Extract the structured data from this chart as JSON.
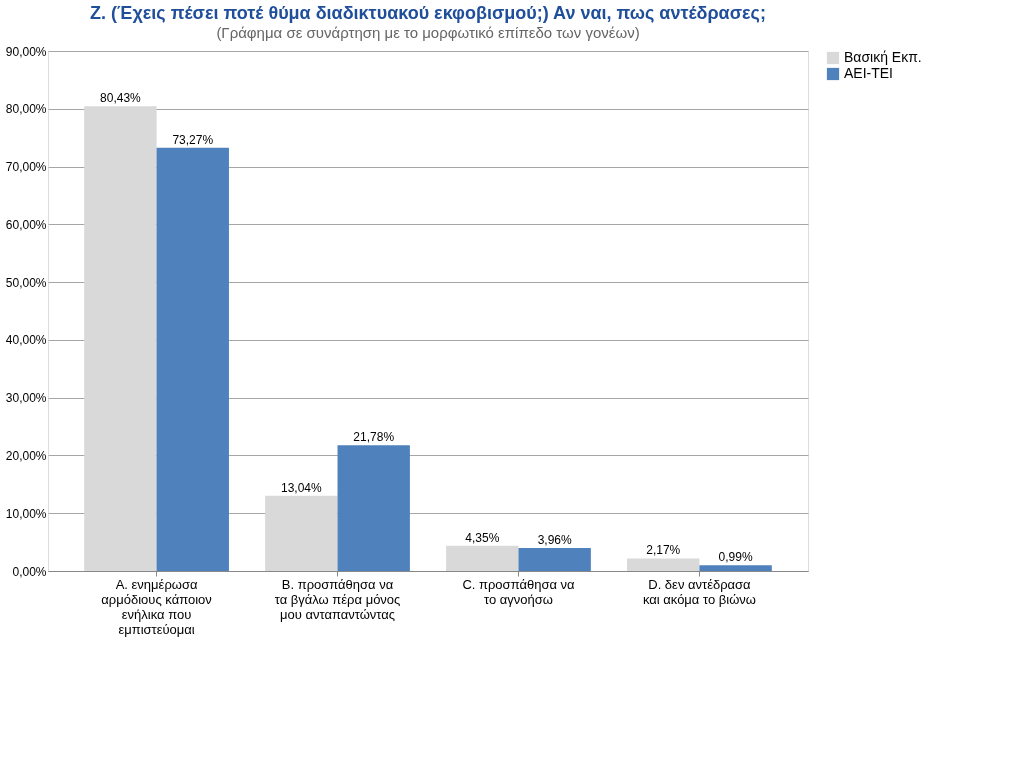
{
  "chart_data": {
    "type": "bar",
    "title": "Ζ. (Έχεις πέσει ποτέ θύμα διαδικτυακού εκφοβισμού;) Αν ναι, πως αντέδρασες;",
    "subtitle": "(Γράφημα σε συνάρτηση με το μορφωτικό επίπεδο των γονέων)",
    "categories": [
      "A.    ενημέρωσα αρμόδιους κάποιον ενήλικα που εμπιστεύομαι",
      "B.    προσπάθησα να τα βγάλω πέρα μόνος μου ανταπαντώντας",
      "C.    προσπάθησα να το αγνοήσω",
      "D.    δεν αντέδρασα και ακόμα το βιώνω"
    ],
    "series": [
      {
        "name": "Βασική Εκπ.",
        "color": "#d9d9d9",
        "values": [
          80.43,
          13.04,
          4.35,
          2.17
        ],
        "value_labels": [
          "80,43%",
          "13,04%",
          "4,35%",
          "2,17%"
        ]
      },
      {
        "name": "ΑΕΙ-ΤΕΙ",
        "color": "#4f81bd",
        "values": [
          73.27,
          21.78,
          3.96,
          0.99
        ],
        "value_labels": [
          "73,27%",
          "21,78%",
          "3,96%",
          "0,99%"
        ]
      }
    ],
    "ylim": [
      0,
      90
    ],
    "yticks": [
      {
        "value": 0,
        "label": "0,00%"
      },
      {
        "value": 10,
        "label": "10,00%"
      },
      {
        "value": 20,
        "label": "20,00%"
      },
      {
        "value": 30,
        "label": "30,00%"
      },
      {
        "value": 40,
        "label": "40,00%"
      },
      {
        "value": 50,
        "label": "50,00%"
      },
      {
        "value": 60,
        "label": "60,00%"
      },
      {
        "value": 70,
        "label": "70,00%"
      },
      {
        "value": 80,
        "label": "80,00%"
      },
      {
        "value": 90,
        "label": "90,00%"
      }
    ],
    "grid": "y",
    "legend": "right"
  }
}
